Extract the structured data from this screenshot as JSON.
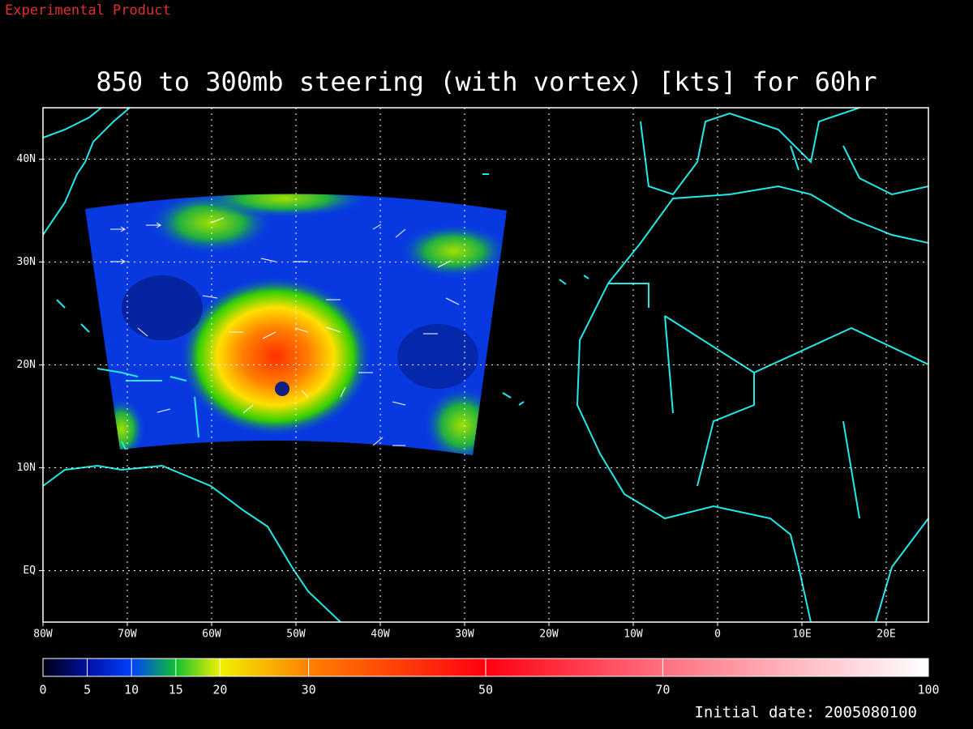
{
  "header": {
    "note": "Experimental Product"
  },
  "title": "850 to 300mb steering (with vortex) [kts] for 60hr",
  "map": {
    "xlim": [
      -80,
      25
    ],
    "xticks": [
      {
        "value": -80,
        "label": "80W"
      },
      {
        "value": -70,
        "label": "70W"
      },
      {
        "value": -60,
        "label": "60W"
      },
      {
        "value": -50,
        "label": "50W"
      },
      {
        "value": -40,
        "label": "40W"
      },
      {
        "value": -30,
        "label": "30W"
      },
      {
        "value": -20,
        "label": "20W"
      },
      {
        "value": -10,
        "label": "10W"
      },
      0,
      {
        "value": 10,
        "label": "10E"
      },
      {
        "value": 20,
        "label": "20E"
      }
    ],
    "ylim": [
      -5,
      45
    ],
    "yticks": [
      {
        "value": 0,
        "label": "EQ"
      },
      {
        "value": 10,
        "label": "10N"
      },
      {
        "value": 20,
        "label": "20N"
      },
      {
        "value": 30,
        "label": "30N"
      },
      {
        "value": 40,
        "label": "40N"
      }
    ],
    "grid": true
  },
  "colorbar": {
    "lim": [
      0,
      100
    ],
    "ticks": [
      0,
      5,
      10,
      15,
      20,
      30,
      50,
      70,
      100
    ]
  },
  "footer": {
    "initial_date": "Initial date: 2005080100"
  }
}
